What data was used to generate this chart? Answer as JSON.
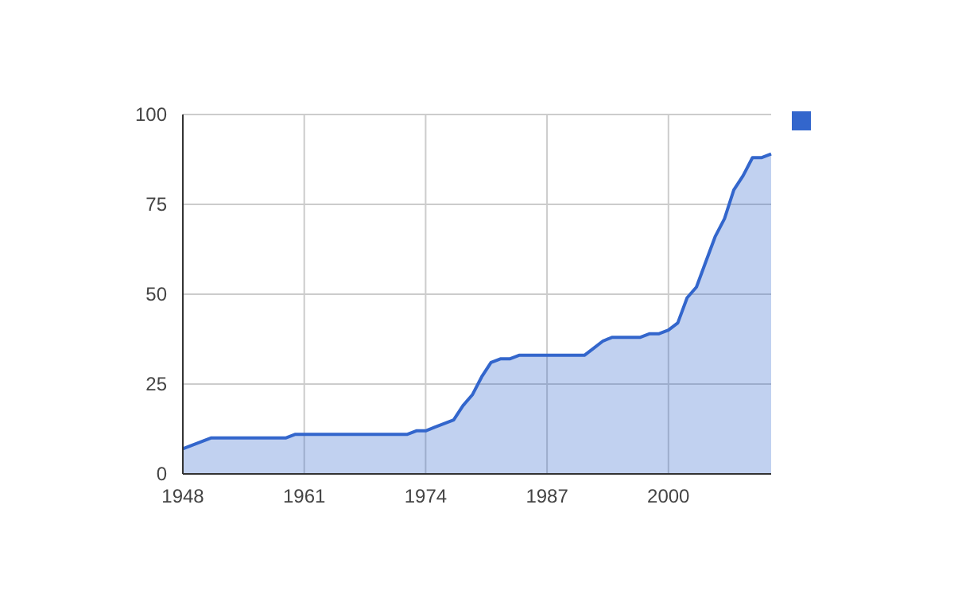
{
  "chart_data": {
    "type": "area",
    "x": [
      1948,
      1949,
      1950,
      1951,
      1952,
      1953,
      1954,
      1955,
      1956,
      1957,
      1958,
      1959,
      1960,
      1961,
      1962,
      1963,
      1964,
      1965,
      1966,
      1967,
      1968,
      1969,
      1970,
      1971,
      1972,
      1973,
      1974,
      1975,
      1976,
      1977,
      1978,
      1979,
      1980,
      1981,
      1982,
      1983,
      1984,
      1985,
      1986,
      1987,
      1988,
      1989,
      1990,
      1991,
      1992,
      1993,
      1994,
      1995,
      1996,
      1997,
      1998,
      1999,
      2000,
      2001,
      2002,
      2003,
      2004,
      2005,
      2006,
      2007,
      2008,
      2009,
      2010,
      2011
    ],
    "series": [
      {
        "color": "#3366cc",
        "values": [
          7,
          8,
          9,
          10,
          10,
          10,
          10,
          10,
          10,
          10,
          10,
          10,
          11,
          11,
          11,
          11,
          11,
          11,
          11,
          11,
          11,
          11,
          11,
          11,
          11,
          12,
          12,
          13,
          14,
          15,
          19,
          22,
          27,
          31,
          32,
          32,
          33,
          33,
          33,
          33,
          33,
          33,
          33,
          33,
          35,
          37,
          38,
          38,
          38,
          38,
          39,
          39,
          40,
          42,
          49,
          52,
          59,
          66,
          71,
          79,
          83,
          88,
          88,
          89
        ]
      }
    ],
    "xlim": [
      1948,
      2011
    ],
    "xticks": [
      1948,
      1961,
      1974,
      1987,
      2000
    ],
    "ylim": [
      0,
      100
    ],
    "yticks": [
      0,
      25,
      50,
      75,
      100
    ],
    "grid": true
  }
}
